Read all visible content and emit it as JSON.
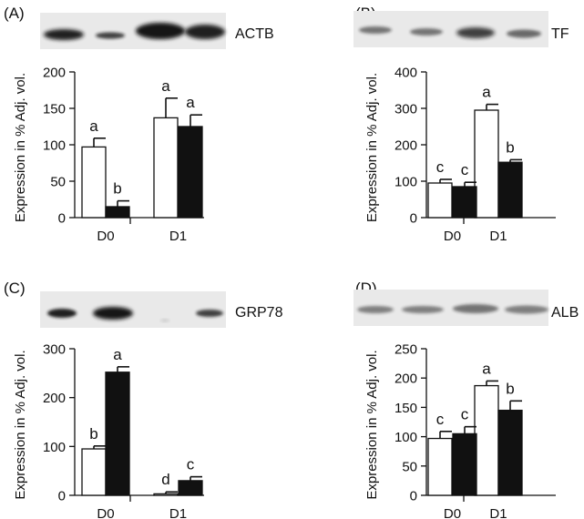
{
  "chart_data": [
    {
      "type": "bar",
      "panel_label": "(A)",
      "blot_label": "ACTB",
      "ylabel": "Expression in % Adj. vol.",
      "ylim": [
        0,
        200
      ],
      "yticks": [
        0,
        50,
        100,
        150,
        200
      ],
      "categories": [
        "D0",
        "D1"
      ],
      "series": [
        {
          "fill": "white",
          "values": [
            97,
            137
          ],
          "errors": [
            12,
            27
          ],
          "letters": [
            "a",
            "a"
          ]
        },
        {
          "fill": "black",
          "values": [
            15,
            125
          ],
          "errors": [
            8,
            16
          ],
          "letters": [
            "b",
            "a"
          ]
        }
      ]
    },
    {
      "type": "bar",
      "panel_label": "(B)",
      "blot_label": "TF",
      "ylabel": "Expression in % Adj. vol.",
      "ylim": [
        0,
        400
      ],
      "yticks": [
        0,
        100,
        200,
        300,
        400
      ],
      "categories": [
        "D0",
        "D1"
      ],
      "series": [
        {
          "fill": "white",
          "values": [
            95,
            295
          ],
          "errors": [
            10,
            16
          ],
          "letters": [
            "c",
            "a"
          ]
        },
        {
          "fill": "black",
          "values": [
            85,
            152
          ],
          "errors": [
            12,
            7
          ],
          "letters": [
            "c",
            "b"
          ]
        }
      ]
    },
    {
      "type": "bar",
      "panel_label": "(C)",
      "blot_label": "GRP78",
      "ylabel": "Expression in % Adj. vol.",
      "ylim": [
        0,
        300
      ],
      "yticks": [
        0,
        100,
        200,
        300
      ],
      "categories": [
        "D0",
        "D1"
      ],
      "series": [
        {
          "fill": "white",
          "values": [
            95,
            3
          ],
          "errors": [
            6,
            4
          ],
          "letters": [
            "b",
            "d"
          ]
        },
        {
          "fill": "black",
          "values": [
            252,
            30
          ],
          "errors": [
            11,
            8
          ],
          "letters": [
            "a",
            "c"
          ]
        }
      ]
    },
    {
      "type": "bar",
      "panel_label": "(D)",
      "blot_label": "ALB",
      "ylabel": "Expression in % Adj. vol.",
      "ylim": [
        0,
        250
      ],
      "yticks": [
        0,
        50,
        100,
        150,
        200,
        250
      ],
      "categories": [
        "D0",
        "D1"
      ],
      "series": [
        {
          "fill": "white",
          "values": [
            97,
            187
          ],
          "errors": [
            12,
            8
          ],
          "letters": [
            "c",
            "a"
          ]
        },
        {
          "fill": "black",
          "values": [
            105,
            145
          ],
          "errors": [
            12,
            16
          ],
          "letters": [
            "c",
            "b"
          ]
        }
      ]
    }
  ]
}
